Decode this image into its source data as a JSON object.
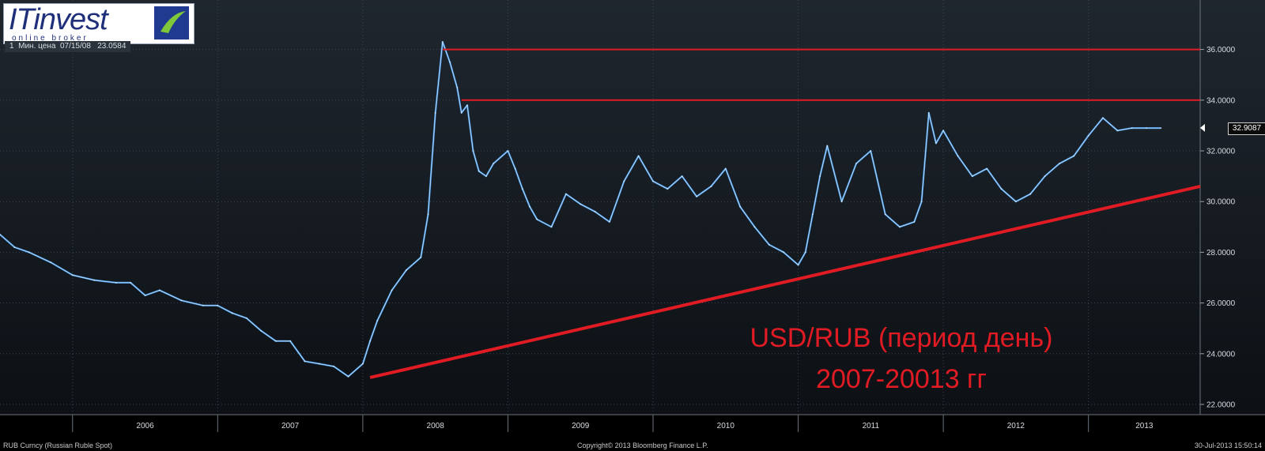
{
  "logo": {
    "name": "ITinvest",
    "tagline": "online broker"
  },
  "info": {
    "label": "Мин. цена",
    "date": "07/15/08",
    "value": "23.0584",
    "index": "1"
  },
  "overlay": {
    "line1": "USD/RUB (период день)",
    "line2": "2007-20013 гг"
  },
  "current": {
    "value": "32.9087"
  },
  "footer": {
    "left": "RUB Curncy (Russian Ruble Spot)",
    "center": "Copyright© 2013 Bloomberg Finance L.P.",
    "right": "30-Jul-2013 15:50:14"
  },
  "colors": {
    "price_line": "#3a8fe0",
    "price_highlight": "#ffffff",
    "annotation": "#e01b24",
    "grid": "#4a525c"
  },
  "chart_data": {
    "type": "line",
    "title": "",
    "xlabel": "",
    "ylabel": "",
    "ylim": [
      22,
      37.5
    ],
    "y_ticks": [
      "22.0000",
      "24.0000",
      "26.0000",
      "28.0000",
      "30.0000",
      "32.0000",
      "34.0000",
      "36.0000"
    ],
    "x_ticks": [
      "2006",
      "2007",
      "2008",
      "2009",
      "2010",
      "2011",
      "2012",
      "2013"
    ],
    "xlim": [
      2005.5,
      2013.77
    ],
    "grid": true,
    "series": [
      {
        "x": [
          2005.5,
          2005.6,
          2005.7,
          2005.85,
          2006.0,
          2006.15,
          2006.3,
          2006.4,
          2006.5,
          2006.6,
          2006.75,
          2006.9,
          2007.0,
          2007.1,
          2007.2,
          2007.3,
          2007.4,
          2007.5,
          2007.6,
          2007.7,
          2007.8,
          2007.9,
          2008.0,
          2008.05,
          2008.1,
          2008.2,
          2008.3,
          2008.4,
          2008.45,
          2008.5,
          2008.55,
          2008.6,
          2008.65,
          2008.68,
          2008.72,
          2008.76,
          2008.8,
          2008.85,
          2008.9,
          2009.0,
          2009.05,
          2009.1,
          2009.15,
          2009.2,
          2009.3,
          2009.4,
          2009.5,
          2009.6,
          2009.7,
          2009.8,
          2009.9,
          2010.0,
          2010.1,
          2010.2,
          2010.3,
          2010.4,
          2010.5,
          2010.6,
          2010.7,
          2010.8,
          2010.9,
          2011.0,
          2011.05,
          2011.1,
          2011.15,
          2011.2,
          2011.3,
          2011.4,
          2011.5,
          2011.6,
          2011.7,
          2011.8,
          2011.85,
          2011.9,
          2011.95,
          2012.0,
          2012.1,
          2012.2,
          2012.3,
          2012.4,
          2012.5,
          2012.6,
          2012.7,
          2012.8,
          2012.9,
          2013.0,
          2013.1,
          2013.2,
          2013.3,
          2013.4,
          2013.5
        ],
        "values": [
          28.7,
          28.2,
          28.0,
          27.6,
          27.1,
          26.9,
          26.8,
          26.8,
          26.3,
          26.5,
          26.1,
          25.9,
          25.9,
          25.6,
          25.4,
          24.9,
          24.5,
          24.5,
          23.7,
          23.6,
          23.5,
          23.1,
          23.6,
          24.5,
          25.3,
          26.5,
          27.3,
          27.8,
          29.5,
          33.5,
          36.3,
          35.5,
          34.5,
          33.5,
          33.8,
          32.0,
          31.2,
          31.0,
          31.5,
          32.0,
          31.3,
          30.5,
          29.8,
          29.3,
          29.0,
          30.3,
          29.9,
          29.6,
          29.2,
          30.8,
          31.8,
          30.8,
          30.5,
          31.0,
          30.2,
          30.6,
          31.3,
          29.8,
          29.0,
          28.3,
          28.0,
          27.5,
          28.0,
          29.5,
          31.0,
          32.2,
          30.0,
          31.5,
          32.0,
          29.5,
          29.0,
          29.2,
          30.0,
          33.5,
          32.3,
          32.8,
          31.8,
          31.0,
          31.3,
          30.5,
          30.0,
          30.3,
          31.0,
          31.5,
          31.8,
          32.6,
          33.3,
          32.8,
          32.9,
          32.9,
          32.9
        ]
      }
    ],
    "annotations": {
      "support_line": {
        "from": [
          2008.05,
          23.06
        ],
        "to": [
          2013.77,
          30.6
        ]
      },
      "resistance_1": {
        "level": 36.0,
        "from_x": 2008.55
      },
      "resistance_2": {
        "level": 34.0,
        "from_x": 2008.68
      }
    }
  }
}
